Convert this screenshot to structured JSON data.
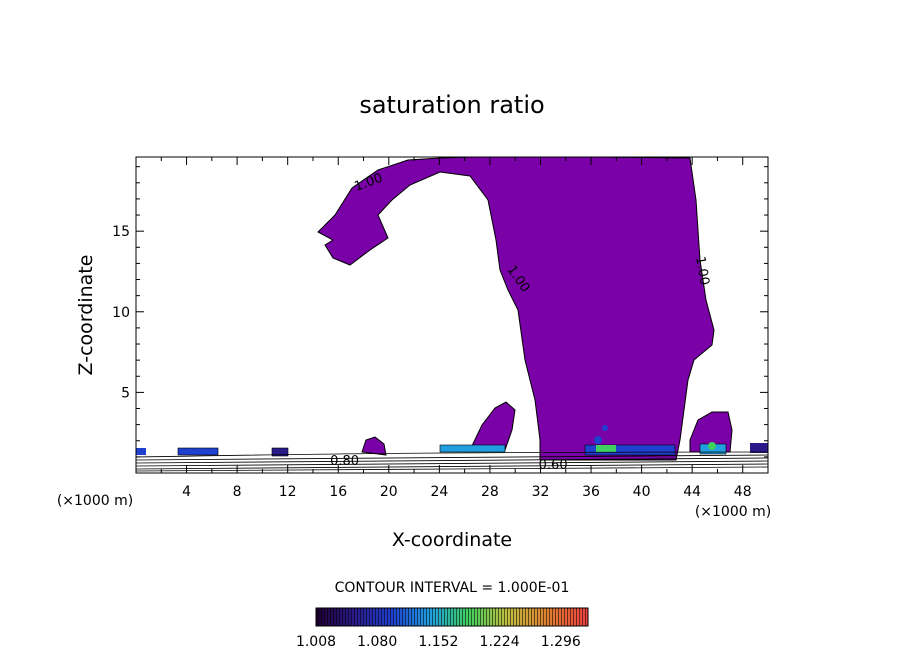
{
  "chart_data": {
    "type": "contour",
    "title": "saturation ratio",
    "xlabel": "X-coordinate",
    "ylabel": "Z-coordinate",
    "x_unit": "(×1000 m)",
    "x_unit_right": "(×1000 m)",
    "xlim": [
      0,
      50
    ],
    "ylim": [
      0,
      19.6
    ],
    "x_ticks": [
      4,
      8,
      12,
      16,
      20,
      24,
      28,
      32,
      36,
      40,
      44,
      48
    ],
    "y_ticks": [
      5,
      10,
      15
    ],
    "contour_labels": [
      {
        "text": "1.00",
        "x": 18.5,
        "z": 17.8
      },
      {
        "text": "1.00",
        "x": 30.0,
        "z": 11.9
      },
      {
        "text": "1.00",
        "x": 44.5,
        "z": 12.5
      },
      {
        "text": "0.80",
        "x": 16.5,
        "z": 0.5
      },
      {
        "text": "0.60",
        "x": 33.0,
        "z": 0.25
      }
    ],
    "fill_color": "#7a00a8",
    "contour_interval_label": "CONTOUR INTERVAL = 1.000E-01",
    "colorbar": {
      "ticks": [
        "1.008",
        "1.080",
        "1.152",
        "1.224",
        "1.296"
      ],
      "colors": [
        "#200030",
        "#2a1a8a",
        "#2040d0",
        "#20a0e0",
        "#40d060",
        "#c0c040",
        "#e08030",
        "#f04040"
      ]
    }
  }
}
